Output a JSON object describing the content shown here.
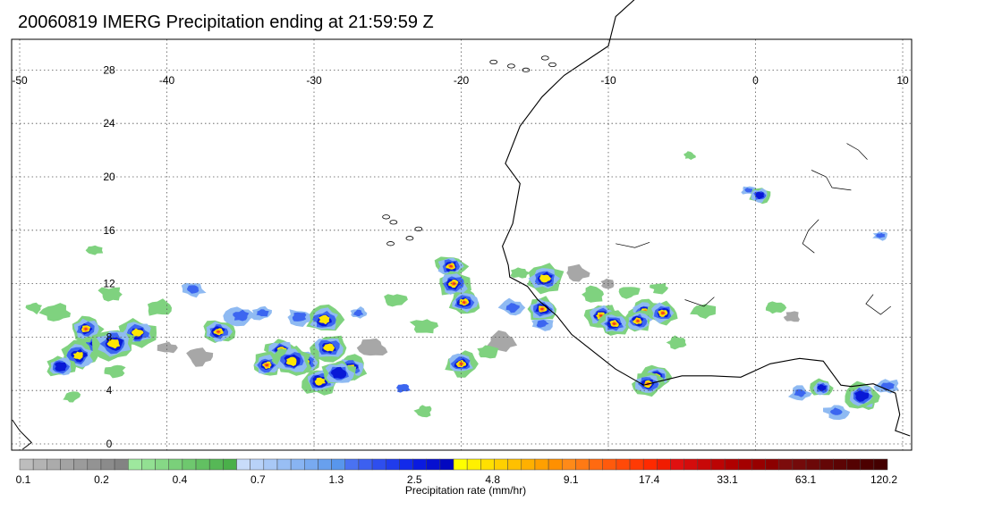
{
  "title": "20060819 IMERG Precipitation ending at 21:59:59 Z",
  "map": {
    "lon_range": [
      -50,
      10
    ],
    "lat_range": [
      -0.5,
      30.5
    ],
    "lon_ticks": [
      "-50",
      "-40",
      "-30",
      "-20",
      "-10",
      "0",
      "10"
    ],
    "lat_ticks": [
      "0",
      "4",
      "8",
      "12",
      "16",
      "20",
      "24",
      "28"
    ],
    "gridlines": "dotted",
    "coastline_color": "#000000"
  },
  "colorbar": {
    "unit_label": "Precipitation rate (mm/hr)",
    "tick_labels": [
      "0.1",
      "0.2",
      "0.4",
      "0.7",
      "1.3",
      "2.5",
      "4.8",
      "9.1",
      "17.4",
      "33.1",
      "63.1",
      "120.2"
    ],
    "colors": [
      "#bdbdbd",
      "#b3b3b3",
      "#ababab",
      "#a3a3a3",
      "#9b9b9b",
      "#939393",
      "#8b8b8b",
      "#838383",
      "#9ee89e",
      "#92e092",
      "#86d886",
      "#7ad07a",
      "#6ec86e",
      "#62c062",
      "#56b856",
      "#4ab04a",
      "#c8dcfa",
      "#b8d2f8",
      "#a8c8f6",
      "#98bef4",
      "#88b4f2",
      "#78aaf0",
      "#68a0ee",
      "#5896ec",
      "#4a72f2",
      "#3c60f0",
      "#2e4eee",
      "#203cec",
      "#122aea",
      "#0a1ae0",
      "#0610d0",
      "#0208c0",
      "#ffff00",
      "#fff000",
      "#ffe000",
      "#ffd000",
      "#ffc000",
      "#ffb000",
      "#ffa000",
      "#ff9000",
      "#ff8a18",
      "#ff7a14",
      "#ff6a10",
      "#ff5a0c",
      "#ff4a08",
      "#ff3a04",
      "#ff2a00",
      "#f01c00",
      "#e01010",
      "#d40c0c",
      "#c80808",
      "#bc0404",
      "#b00000",
      "#a40000",
      "#980000",
      "#8c0000",
      "#7c0c0c",
      "#740a0a",
      "#6c0808",
      "#640606",
      "#5c0404",
      "#540202",
      "#4c0000",
      "#440000"
    ]
  },
  "precip_scale": {
    "light_gray": 0.1,
    "green": 0.3,
    "light_blue": 0.7,
    "blue": 2.5,
    "dark_blue": 4.8,
    "yellow": 4.8,
    "orange": 9.1
  },
  "precip_cells": [
    {
      "lon": -44.7,
      "lat": 7.5,
      "level": "yellow"
    },
    {
      "lon": -46.0,
      "lat": 6.6,
      "level": "yellow"
    },
    {
      "lon": -42.0,
      "lat": 8.3,
      "level": "yellow"
    },
    {
      "lon": -45.5,
      "lat": 8.6,
      "level": "orange"
    },
    {
      "lon": -36.5,
      "lat": 8.4,
      "level": "orange"
    },
    {
      "lon": -32.2,
      "lat": 7.0,
      "level": "orange"
    },
    {
      "lon": -30.6,
      "lat": 6.1,
      "level": "orange"
    },
    {
      "lon": -33.2,
      "lat": 5.9,
      "level": "orange"
    },
    {
      "lon": -29.0,
      "lat": 7.2,
      "level": "yellow"
    },
    {
      "lon": -29.3,
      "lat": 9.3,
      "level": "yellow"
    },
    {
      "lon": -27.5,
      "lat": 5.7,
      "level": "orange"
    },
    {
      "lon": -29.6,
      "lat": 4.7,
      "level": "yellow"
    },
    {
      "lon": -20.7,
      "lat": 13.3,
      "level": "orange"
    },
    {
      "lon": -19.8,
      "lat": 10.6,
      "level": "orange"
    },
    {
      "lon": -20.0,
      "lat": 6.0,
      "level": "orange"
    },
    {
      "lon": -14.3,
      "lat": 12.4,
      "level": "yellow"
    },
    {
      "lon": -14.5,
      "lat": 10.1,
      "level": "orange"
    },
    {
      "lon": -10.5,
      "lat": 9.6,
      "level": "orange"
    },
    {
      "lon": -9.6,
      "lat": 9.0,
      "level": "orange"
    },
    {
      "lon": -7.5,
      "lat": 9.9,
      "level": "orange"
    },
    {
      "lon": -6.3,
      "lat": 9.8,
      "level": "orange"
    },
    {
      "lon": -6.8,
      "lat": 5.0,
      "level": "orange"
    },
    {
      "lon": -7.3,
      "lat": 4.5,
      "level": "orange"
    },
    {
      "lon": 0.3,
      "lat": 18.6,
      "level": "blue"
    },
    {
      "lon": 7.5,
      "lat": 3.2,
      "level": "blue"
    },
    {
      "lon": 4.5,
      "lat": 4.2,
      "level": "blue"
    }
  ]
}
